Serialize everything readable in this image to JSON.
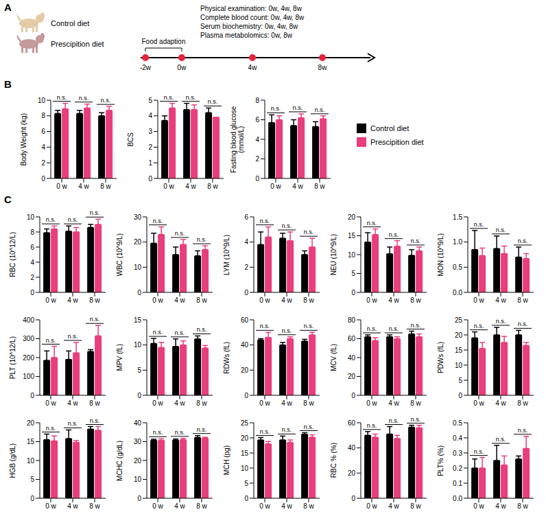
{
  "diagram": {
    "label": "A",
    "groups": [
      {
        "name": "Control diet",
        "color": "#e3cba6"
      },
      {
        "name": "Prescipition diet",
        "color": "#c49a9a"
      }
    ],
    "bracket": "Food adaption",
    "timepoints": [
      "-2w",
      "0w",
      "4w",
      "8w"
    ],
    "schedule": [
      "Physical examination: 0w, 4w, 8w",
      "Complete blood count: 0w, 4w, 8w",
      "Serum biochemistry: 0w, 4w, 8w",
      "Plasma metabolomics: 0w, 8w"
    ]
  },
  "chart_data": [
    {
      "type": "bar",
      "panel": "B",
      "y_label": "Body Weight (kg)",
      "categories": [
        "0 w",
        "4 w",
        "8 w"
      ],
      "series": [
        {
          "name": "Control diet",
          "color": "#000000",
          "values": [
            8.3,
            8.3,
            8.0
          ],
          "errors": [
            0.4,
            0.4,
            0.4
          ]
        },
        {
          "name": "Prescipition diet",
          "color": "#ea3d7c",
          "values": [
            8.9,
            9.0,
            8.7
          ],
          "errors": [
            0.7,
            0.5,
            0.5
          ]
        }
      ],
      "ylim": [
        0,
        10
      ],
      "yticks": [
        0,
        2,
        4,
        6,
        8,
        10
      ],
      "annotations": [
        "n.s.",
        "n.s.",
        "n.s."
      ]
    },
    {
      "type": "bar",
      "panel": "B",
      "y_label": "BCS",
      "categories": [
        "0 w",
        "4 w",
        "8 w"
      ],
      "series": [
        {
          "name": "Control diet",
          "color": "#000000",
          "values": [
            3.7,
            4.4,
            4.2
          ],
          "errors": [
            0.3,
            0.4,
            0.3
          ]
        },
        {
          "name": "Prescipition diet",
          "color": "#ea3d7c",
          "values": [
            4.5,
            4.4,
            3.9
          ],
          "errors": [
            0.3,
            0.3,
            0
          ]
        }
      ],
      "ylim": [
        0,
        5
      ],
      "yticks": [
        0,
        1,
        2,
        3,
        4,
        5
      ],
      "annotations": [
        "n.s.",
        "n.s.",
        "n.s."
      ]
    },
    {
      "type": "bar",
      "panel": "B",
      "legend": "right",
      "y_label": "Fasting blood glucose (mmol/L)",
      "categories": [
        "0 w",
        "4 w",
        "8 w"
      ],
      "series": [
        {
          "name": "Control diet",
          "color": "#000000",
          "values": [
            5.7,
            5.4,
            5.3
          ],
          "errors": [
            0.8,
            0.6,
            0.5
          ]
        },
        {
          "name": "Prescipition diet",
          "color": "#ea3d7c",
          "values": [
            6.0,
            6.2,
            6.1
          ],
          "errors": [
            0.4,
            0.4,
            0.3
          ]
        }
      ],
      "ylim": [
        0,
        8
      ],
      "yticks": [
        0,
        2,
        4,
        6,
        8
      ],
      "annotations": [
        "n.s.",
        "n.s.",
        "n.s."
      ]
    },
    {
      "type": "bar",
      "panel": "C",
      "y_label": "RBC (10^12/L)",
      "categories": [
        "0 w",
        "4 w",
        "8 w"
      ],
      "series": [
        {
          "name": "Control diet",
          "color": "#000000",
          "values": [
            7.9,
            8.1,
            8.6
          ],
          "errors": [
            0.5,
            0.7,
            0.4
          ]
        },
        {
          "name": "Prescipition diet",
          "color": "#ea3d7c",
          "values": [
            8.4,
            8.0,
            9.0
          ],
          "errors": [
            0.4,
            0.6,
            0.7
          ]
        }
      ],
      "ylim": [
        0,
        10
      ],
      "yticks": [
        0,
        2,
        4,
        6,
        8,
        10
      ],
      "annotations": [
        "n.s.",
        "n.s.",
        "n.s."
      ]
    },
    {
      "type": "bar",
      "panel": "C",
      "y_label": "WBC (10^9/L)",
      "categories": [
        "0 w",
        "4 w",
        "8 w"
      ],
      "series": [
        {
          "name": "Control diet",
          "color": "#000000",
          "values": [
            19.5,
            15,
            14.5
          ],
          "errors": [
            4,
            3,
            2
          ]
        },
        {
          "name": "Prescipition diet",
          "color": "#ea3d7c",
          "values": [
            23,
            19,
            17
          ],
          "errors": [
            3,
            2,
            1.5
          ]
        }
      ],
      "ylim": [
        0,
        30
      ],
      "yticks": [
        0,
        10,
        20,
        30
      ],
      "annotations": [
        "n.s.",
        "n.s.",
        "n.s."
      ]
    },
    {
      "type": "bar",
      "panel": "C",
      "y_label": "LYM (10^9/L)",
      "categories": [
        "0 w",
        "4 w",
        "8 w"
      ],
      "series": [
        {
          "name": "Control diet",
          "color": "#000000",
          "values": [
            3.8,
            4.3,
            3.0
          ],
          "errors": [
            1.0,
            0.4,
            0.3
          ]
        },
        {
          "name": "Prescipition diet",
          "color": "#ea3d7c",
          "values": [
            4.4,
            4.1,
            3.6
          ],
          "errors": [
            0.8,
            0.7,
            0.7
          ]
        }
      ],
      "ylim": [
        0,
        6
      ],
      "yticks": [
        0,
        2,
        4,
        6
      ],
      "annotations": [
        "n.s.",
        "n.s.",
        "n.s."
      ]
    },
    {
      "type": "bar",
      "panel": "C",
      "y_label": "NEU (10^9/L)",
      "categories": [
        "0 w",
        "4 w",
        "8 w"
      ],
      "series": [
        {
          "name": "Control diet",
          "color": "#000000",
          "values": [
            13.3,
            10.2,
            9.8
          ],
          "errors": [
            2.5,
            1.8,
            1.5
          ]
        },
        {
          "name": "Prescipition diet",
          "color": "#ea3d7c",
          "values": [
            15.3,
            12.2,
            11.0
          ],
          "errors": [
            1.5,
            1.5,
            1.0
          ]
        }
      ],
      "ylim": [
        0,
        20
      ],
      "yticks": [
        0,
        5,
        10,
        15,
        20
      ],
      "annotations": [
        "n.s.",
        "n.s.",
        "n.s."
      ]
    },
    {
      "type": "bar",
      "panel": "C",
      "y_label": "MON (10^9/L)",
      "categories": [
        "0 w",
        "4 w",
        "8 w"
      ],
      "series": [
        {
          "name": "Control diet",
          "color": "#000000",
          "values": [
            0.85,
            0.87,
            0.7
          ],
          "errors": [
            0.38,
            0.25,
            0.2
          ]
        },
        {
          "name": "Prescipition diet",
          "color": "#ea3d7c",
          "values": [
            0.73,
            0.77,
            0.67
          ],
          "errors": [
            0.15,
            0.15,
            0.1
          ]
        }
      ],
      "ylim": [
        0,
        1.5
      ],
      "yticks": [
        {
          "value": 0,
          "label": "0.0"
        },
        0.5,
        {
          "value": 1,
          "label": "1.0"
        },
        1.5
      ],
      "annotations": [
        "n.s.",
        "n.s.",
        "n.s."
      ]
    },
    {
      "type": "bar",
      "panel": "C",
      "y_label": "PLT (10^12/L)",
      "categories": [
        "0 w",
        "4 w",
        "8 w"
      ],
      "series": [
        {
          "name": "Control diet",
          "color": "#000000",
          "values": [
            185,
            190,
            232
          ],
          "errors": [
            50,
            45,
            10
          ]
        },
        {
          "name": "Prescipition diet",
          "color": "#ea3d7c",
          "values": [
            200,
            225,
            315
          ],
          "errors": [
            60,
            55,
            55
          ]
        }
      ],
      "ylim": [
        0,
        400
      ],
      "yticks": [
        0,
        100,
        200,
        300,
        400
      ],
      "annotations": [
        "n.s.",
        "n.s.",
        "n.s."
      ]
    },
    {
      "type": "bar",
      "panel": "C",
      "y_label": "MPV (fL)",
      "categories": [
        "0 w",
        "4 w",
        "8 w"
      ],
      "series": [
        {
          "name": "Control diet",
          "color": "#000000",
          "values": [
            10.3,
            9.7,
            11.2
          ],
          "errors": [
            1.0,
            1.5,
            0.6
          ]
        },
        {
          "name": "Prescipition diet",
          "color": "#ea3d7c",
          "values": [
            9.5,
            10.0,
            9.4
          ],
          "errors": [
            1.0,
            0.8,
            0.5
          ]
        }
      ],
      "ylim": [
        0,
        15
      ],
      "yticks": [
        0,
        5,
        10,
        15
      ],
      "annotations": [
        "n.s.",
        "n.s.",
        "n.s."
      ]
    },
    {
      "type": "bar",
      "panel": "C",
      "y_label": "RDWs (fL)",
      "categories": [
        "0 w",
        "4 w",
        "8 w"
      ],
      "series": [
        {
          "name": "Control diet",
          "color": "#000000",
          "values": [
            44,
            40,
            43
          ],
          "errors": [
            1,
            2,
            1.5
          ]
        },
        {
          "name": "Prescipition diet",
          "color": "#ea3d7c",
          "values": [
            46,
            45,
            48
          ],
          "errors": [
            4,
            1.5,
            2
          ]
        }
      ],
      "ylim": [
        0,
        60
      ],
      "yticks": [
        0,
        20,
        40,
        60
      ],
      "annotations": [
        "n.s.",
        "n.s.",
        "n.s."
      ]
    },
    {
      "type": "bar",
      "panel": "C",
      "y_label": "MCV (fL)",
      "categories": [
        "0 w",
        "4 w",
        "8 w"
      ],
      "series": [
        {
          "name": "Control diet",
          "color": "#000000",
          "values": [
            62,
            62,
            65
          ],
          "errors": [
            2,
            2,
            3
          ]
        },
        {
          "name": "Prescipition diet",
          "color": "#ea3d7c",
          "values": [
            58,
            60,
            62
          ],
          "errors": [
            3,
            2,
            3
          ]
        }
      ],
      "ylim": [
        0,
        80
      ],
      "yticks": [
        0,
        20,
        40,
        60,
        80
      ],
      "annotations": [
        "n.s.",
        "n.s.",
        "n.s."
      ]
    },
    {
      "type": "bar",
      "panel": "C",
      "y_label": "PDWs (fL)",
      "categories": [
        "0 w",
        "4 w",
        "8 w"
      ],
      "series": [
        {
          "name": "Control diet",
          "color": "#000000",
          "values": [
            19,
            20,
            20
          ],
          "errors": [
            2,
            2.5,
            1.5
          ]
        },
        {
          "name": "Prescipition diet",
          "color": "#ea3d7c",
          "values": [
            15.5,
            17.5,
            16.5
          ],
          "errors": [
            2,
            2,
            1
          ]
        }
      ],
      "ylim": [
        0,
        25
      ],
      "yticks": [
        0,
        5,
        10,
        15,
        20,
        25
      ],
      "annotations": [
        "n.s.",
        "n.s.",
        "n.s."
      ]
    },
    {
      "type": "bar",
      "panel": "C",
      "y_label": "HGB (g/dL)",
      "categories": [
        "0 w",
        "4 w",
        "8 w"
      ],
      "series": [
        {
          "name": "Control diet",
          "color": "#000000",
          "values": [
            15.5,
            15.8,
            18.3
          ],
          "errors": [
            1.5,
            2.3,
            0.7
          ]
        },
        {
          "name": "Prescipition diet",
          "color": "#ea3d7c",
          "values": [
            15.2,
            14.8,
            18
          ],
          "errors": [
            1.3,
            0.5,
            1
          ]
        }
      ],
      "ylim": [
        0,
        20
      ],
      "yticks": [
        0,
        5,
        10,
        15,
        20
      ],
      "annotations": [
        "n.s.",
        "n.s.",
        "n.s."
      ]
    },
    {
      "type": "bar",
      "panel": "C",
      "y_label": "MCHC (g/dL)",
      "categories": [
        "0 w",
        "4 w",
        "8 w"
      ],
      "series": [
        {
          "name": "Control diet",
          "color": "#000000",
          "values": [
            30.7,
            30.8,
            32.2
          ],
          "errors": [
            0.6,
            0.6,
            1
          ]
        },
        {
          "name": "Prescipition diet",
          "color": "#ea3d7c",
          "values": [
            30.7,
            31,
            31.8
          ],
          "errors": [
            0.8,
            0.7,
            0.5
          ]
        }
      ],
      "ylim": [
        0,
        40
      ],
      "yticks": [
        0,
        10,
        20,
        30,
        40
      ],
      "annotations": [
        "n.s.",
        "n.s.",
        "n.s."
      ]
    },
    {
      "type": "bar",
      "panel": "C",
      "y_label": "MCH (pg)",
      "categories": [
        "0 w",
        "4 w",
        "8 w"
      ],
      "series": [
        {
          "name": "Control diet",
          "color": "#000000",
          "values": [
            19.3,
            19.3,
            21.2
          ],
          "errors": [
            0.8,
            1.3,
            0.5
          ]
        },
        {
          "name": "Prescipition diet",
          "color": "#ea3d7c",
          "values": [
            18,
            18.5,
            20.2
          ],
          "errors": [
            0.8,
            0.8,
            0.8
          ]
        }
      ],
      "ylim": [
        0,
        25
      ],
      "yticks": [
        0,
        5,
        10,
        15,
        20,
        25
      ],
      "annotations": [
        "n.s.",
        "n.s.",
        "n.s."
      ]
    },
    {
      "type": "bar",
      "panel": "C",
      "y_label": "RBC % (%)",
      "categories": [
        "0 w",
        "4 w",
        "8 w"
      ],
      "series": [
        {
          "name": "Control diet",
          "color": "#000000",
          "values": [
            50,
            51,
            56.5
          ],
          "errors": [
            3,
            6,
            1.5
          ]
        },
        {
          "name": "Prescipition diet",
          "color": "#ea3d7c",
          "values": [
            48.5,
            47.5,
            56
          ],
          "errors": [
            2.5,
            2.5,
            2
          ]
        }
      ],
      "ylim": [
        0,
        60
      ],
      "yticks": [
        0,
        20,
        40,
        60
      ],
      "annotations": [
        "n.s.",
        "n.s.",
        "n.s."
      ]
    },
    {
      "type": "bar",
      "panel": "C",
      "y_label": "PLT% (%)",
      "categories": [
        "0 w",
        "4 w",
        "8 w"
      ],
      "series": [
        {
          "name": "Control diet",
          "color": "#000000",
          "values": [
            0.2,
            0.25,
            0.26
          ],
          "errors": [
            0.06,
            0.1,
            0.02
          ]
        },
        {
          "name": "Prescipition diet",
          "color": "#ea3d7c",
          "values": [
            0.2,
            0.22,
            0.33
          ],
          "errors": [
            0.07,
            0.06,
            0.08
          ]
        }
      ],
      "ylim": [
        0,
        0.5
      ],
      "yticks": [
        {
          "value": 0,
          "label": "0.0"
        },
        0.1,
        0.2,
        0.3,
        0.4,
        0.5
      ],
      "annotations": [
        "n.s.",
        "n.s.",
        "n.s."
      ]
    }
  ]
}
